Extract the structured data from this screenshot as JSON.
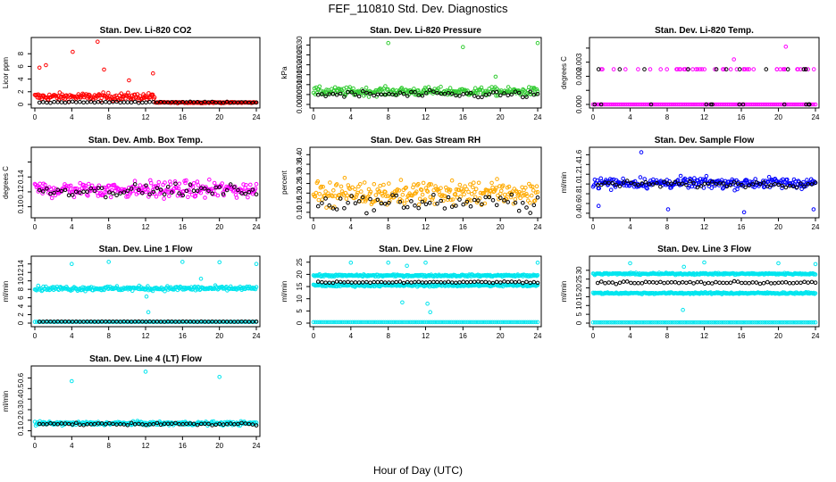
{
  "title": "FEF_110810  Std. Dev. Diagnostics",
  "xlabel": "Hour of Day (UTC)",
  "chart_data": [
    {
      "type": "scatter",
      "title": "Stan. Dev. Li-820 CO2",
      "xlabel": "",
      "ylabel": "Licor ppm",
      "xlim": [
        0,
        24
      ],
      "ylim": [
        0,
        10
      ],
      "xticks": [
        0,
        4,
        8,
        12,
        16,
        20,
        24
      ],
      "yticks": [
        0,
        2,
        4,
        6,
        8
      ],
      "yticklabels": [
        "0",
        "2",
        "4",
        "6",
        "8"
      ],
      "color": "#ff0000",
      "series": [
        {
          "base": 1.2,
          "spread": 1.0,
          "end": 0.3,
          "switch_hour": 13,
          "outliers": [
            [
              0.5,
              5.8
            ],
            [
              1.2,
              6.2
            ],
            [
              4.1,
              8.3
            ],
            [
              6.8,
              9.9
            ],
            [
              7.5,
              5.5
            ],
            [
              10.2,
              3.8
            ],
            [
              12.8,
              4.9
            ]
          ]
        }
      ],
      "black_series": {
        "base": 0.35,
        "spread": 0.15
      }
    },
    {
      "type": "scatter",
      "title": "Stan. Dev. Li-820 Pressure",
      "xlabel": "",
      "ylabel": "kPa",
      "xlim": [
        0,
        24
      ],
      "ylim": [
        0,
        0.032
      ],
      "xticks": [
        0,
        4,
        8,
        12,
        16,
        20,
        24
      ],
      "yticks": [
        0,
        0.005,
        0.01,
        0.015,
        0.02,
        0.025,
        0.03
      ],
      "yticklabels": [
        "0.000",
        "0.005",
        "0.010",
        "0.015",
        "0.020",
        "0.025",
        "0.030"
      ],
      "color": "#33cc33",
      "series": [
        {
          "base": 0.0065,
          "spread": 0.0035,
          "outliers": [
            [
              8.0,
              0.031
            ],
            [
              16.0,
              0.029
            ],
            [
              19.5,
              0.014
            ],
            [
              24.0,
              0.031
            ]
          ]
        }
      ],
      "black_series": {
        "base": 0.005,
        "spread": 0.003
      }
    },
    {
      "type": "scatter",
      "title": "Stan. Dev. Li-820 Temp.",
      "xlabel": "",
      "ylabel": "degrees C",
      "xlim": [
        0,
        24
      ],
      "ylim": [
        0,
        0.0045
      ],
      "xticks": [
        0,
        4,
        8,
        12,
        16,
        20,
        24
      ],
      "yticks": [
        0,
        0.001,
        0.002,
        0.003,
        0.004
      ],
      "yticklabels": [
        "0.000",
        "",
        "0.002",
        "0.003",
        ""
      ],
      "color": "#ff00ff",
      "levels": [
        0,
        0.0025
      ],
      "outliers": [
        [
          15.2,
          0.0032
        ],
        [
          20.8,
          0.0041
        ]
      ]
    },
    {
      "type": "scatter",
      "title": "Stan. Dev. Amb. Box Temp.",
      "xlabel": "",
      "ylabel": "degrees C",
      "xlim": [
        0,
        24
      ],
      "ylim": [
        0.09,
        0.175
      ],
      "xticks": [
        0,
        4,
        8,
        12,
        16,
        20,
        24
      ],
      "yticks": [
        0.1,
        0.12,
        0.14,
        0.16
      ],
      "yticklabels": [
        "0.10",
        "0.12",
        "0.14",
        ""
      ],
      "color": "#ff00ff",
      "series": [
        {
          "base": 0.123,
          "spread": 0.018
        }
      ],
      "black_series": {
        "base": 0.122,
        "spread": 0.012
      }
    },
    {
      "type": "scatter",
      "title": "Stan. Dev. Gas Stream RH",
      "xlabel": "",
      "ylabel": "percent",
      "xlim": [
        0,
        24
      ],
      "ylim": [
        0.09,
        0.42
      ],
      "xticks": [
        0,
        4,
        8,
        12,
        16,
        20,
        24
      ],
      "yticks": [
        0.1,
        0.15,
        0.2,
        0.25,
        0.3,
        0.35,
        0.4
      ],
      "yticklabels": [
        "0.10",
        "0.15",
        "0.20",
        "0.25",
        "0.30",
        "0.35",
        "0.40"
      ],
      "color": "#ffaa00",
      "series": [
        {
          "base": 0.2,
          "spread": 0.1
        }
      ],
      "black_series": {
        "base": 0.15,
        "spread": 0.07
      }
    },
    {
      "type": "scatter",
      "title": "Stan. Dev. Sample Flow",
      "xlabel": "",
      "ylabel": "ml/min",
      "xlim": [
        0,
        24
      ],
      "ylim": [
        0.38,
        1.68
      ],
      "xticks": [
        0,
        4,
        8,
        12,
        16,
        20,
        24
      ],
      "yticks": [
        0.4,
        0.6,
        0.8,
        1.0,
        1.2,
        1.4,
        1.6
      ],
      "yticklabels": [
        "0.4",
        "0.6",
        "0.8",
        "1.0",
        "1.2",
        "1.4",
        "1.6"
      ],
      "color": "#0000ff",
      "series": [
        {
          "base": 1.02,
          "spread": 0.18,
          "outliers": [
            [
              0.6,
              0.55
            ],
            [
              5.2,
              1.65
            ],
            [
              8.1,
              0.48
            ],
            [
              16.3,
              0.42
            ],
            [
              23.8,
              0.48
            ]
          ]
        }
      ],
      "black_series": {
        "base": 1.0,
        "spread": 0.1
      }
    },
    {
      "type": "scatter",
      "title": "Stan. Dev. Line 1 Flow",
      "xlabel": "",
      "ylabel": "ml/min",
      "xlim": [
        0,
        24
      ],
      "ylim": [
        0,
        15
      ],
      "xticks": [
        0,
        4,
        8,
        12,
        16,
        20,
        24
      ],
      "yticks": [
        0,
        2,
        4,
        6,
        8,
        10,
        12,
        14
      ],
      "yticklabels": [
        "0",
        "2",
        "4",
        "6",
        "8",
        "10",
        "12",
        "14"
      ],
      "color": "#00e5ee",
      "series": [
        {
          "base": 8.2,
          "spread": 0.9,
          "outliers": [
            [
              4.0,
              14.0
            ],
            [
              8.0,
              14.5
            ],
            [
              12.3,
              2.6
            ],
            [
              12.1,
              6.3
            ],
            [
              16.0,
              14.5
            ],
            [
              18.0,
              10.5
            ],
            [
              20.0,
              14.4
            ],
            [
              24.0,
              14.0
            ]
          ]
        }
      ],
      "baseline": 0.3,
      "black_series": {
        "base": 0.35,
        "spread": 0.05
      }
    },
    {
      "type": "scatter",
      "title": "Stan. Dev. Line 2 Flow",
      "xlabel": "",
      "ylabel": "ml/min",
      "xlim": [
        0,
        24
      ],
      "ylim": [
        0,
        26
      ],
      "xticks": [
        0,
        4,
        8,
        12,
        16,
        20,
        24
      ],
      "yticks": [
        0,
        5,
        10,
        15,
        20,
        25
      ],
      "yticklabels": [
        "0",
        "5",
        "10",
        "15",
        "20",
        "25"
      ],
      "color": "#00e5ee",
      "series": [
        {
          "base": 19.5,
          "spread": 0.7
        },
        {
          "base": 15.5,
          "spread": 0.8
        }
      ],
      "baseline": 0.4,
      "outliers": [
        [
          4.0,
          24.8
        ],
        [
          8.0,
          24.8
        ],
        [
          10.0,
          23.5
        ],
        [
          12.0,
          24.8
        ],
        [
          12.2,
          8.0
        ],
        [
          12.5,
          4.5
        ],
        [
          9.5,
          8.5
        ],
        [
          24.0,
          24.8
        ]
      ],
      "black_series": {
        "base": 16.8,
        "spread": 0.5
      }
    },
    {
      "type": "scatter",
      "title": "Stan. Dev. Line 3 Flow",
      "xlabel": "",
      "ylabel": "ml/min",
      "xlim": [
        0,
        24
      ],
      "ylim": [
        0,
        36
      ],
      "xticks": [
        0,
        4,
        8,
        12,
        16,
        20,
        24
      ],
      "yticks": [
        0,
        5,
        10,
        15,
        20,
        25,
        30
      ],
      "yticklabels": [
        "0",
        "5",
        "10",
        "15",
        "20",
        "25",
        "30"
      ],
      "color": "#00e5ee",
      "series": [
        {
          "base": 28.0,
          "spread": 0.8
        },
        {
          "base": 17.0,
          "spread": 0.8
        }
      ],
      "baseline": 0.4,
      "outliers": [
        [
          4.0,
          34.0
        ],
        [
          9.8,
          32.0
        ],
        [
          9.7,
          7.5
        ],
        [
          12.0,
          34.5
        ],
        [
          20.0,
          34.0
        ],
        [
          24.0,
          33.5
        ]
      ],
      "black_series": {
        "base": 23.0,
        "spread": 1.0
      }
    },
    {
      "type": "scatter",
      "title": "Stan. Dev. Line 4 (LT) Flow",
      "xlabel": "",
      "ylabel": "ml/min",
      "xlim": [
        0,
        24
      ],
      "ylim": [
        0.08,
        0.68
      ],
      "xticks": [
        0,
        4,
        8,
        12,
        16,
        20,
        24
      ],
      "yticks": [
        0.1,
        0.2,
        0.3,
        0.4,
        0.5,
        0.6
      ],
      "yticklabels": [
        "0.1",
        "0.2",
        "0.3",
        "0.4",
        "0.5",
        "0.6"
      ],
      "color": "#00e5ee",
      "series": [
        {
          "base": 0.17,
          "spread": 0.03,
          "outliers": [
            [
              4.0,
              0.57
            ],
            [
              12.0,
              0.66
            ],
            [
              20.0,
              0.61
            ]
          ]
        }
      ],
      "black_series": {
        "base": 0.165,
        "spread": 0.02
      }
    }
  ]
}
